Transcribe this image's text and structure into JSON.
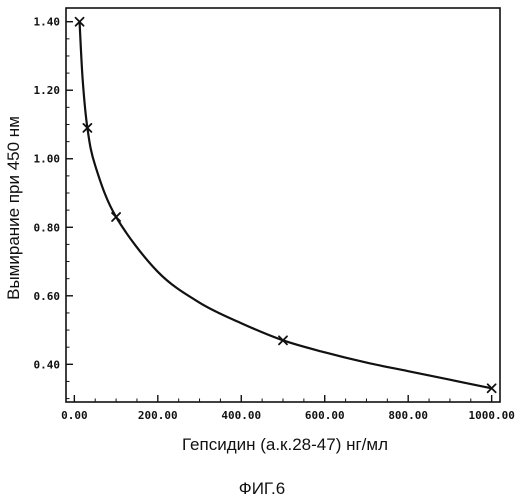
{
  "figure_label": "ФИГ.6",
  "chart_data": {
    "type": "scatter",
    "title": "",
    "xlabel": "Гепсидин (а.к.28-47) нг/мл",
    "ylabel": "Вымирание при 450 нм",
    "xlim": [
      -20,
      1020
    ],
    "ylim": [
      0.29,
      1.44
    ],
    "x_ticks": [
      0,
      200,
      400,
      600,
      800,
      1000
    ],
    "x_tick_labels": [
      "0.00",
      "200.00",
      "400.00",
      "600.00",
      "800.00",
      "1000.00"
    ],
    "y_ticks": [
      0.4,
      0.6,
      0.8,
      1.0,
      1.2,
      1.4
    ],
    "y_tick_labels": [
      "0.40",
      "0.60",
      "0.80",
      "1.00",
      "1.20",
      "1.40"
    ],
    "grid": false,
    "legend": "none",
    "series": [
      {
        "marker": "x",
        "points": [
          {
            "x": 12.5,
            "y": 1.4
          },
          {
            "x": 31.25,
            "y": 1.09
          },
          {
            "x": 100,
            "y": 0.83
          },
          {
            "x": 500,
            "y": 0.47
          },
          {
            "x": 1000,
            "y": 0.33
          }
        ]
      }
    ],
    "fit_curve": {
      "style": "smooth",
      "points": [
        {
          "x": 12.5,
          "y": 1.4
        },
        {
          "x": 20,
          "y": 1.23
        },
        {
          "x": 31.25,
          "y": 1.09
        },
        {
          "x": 50,
          "y": 0.98
        },
        {
          "x": 100,
          "y": 0.83
        },
        {
          "x": 200,
          "y": 0.67
        },
        {
          "x": 300,
          "y": 0.58
        },
        {
          "x": 400,
          "y": 0.52
        },
        {
          "x": 500,
          "y": 0.47
        },
        {
          "x": 600,
          "y": 0.435
        },
        {
          "x": 700,
          "y": 0.405
        },
        {
          "x": 800,
          "y": 0.38
        },
        {
          "x": 900,
          "y": 0.355
        },
        {
          "x": 1000,
          "y": 0.33
        }
      ]
    }
  }
}
